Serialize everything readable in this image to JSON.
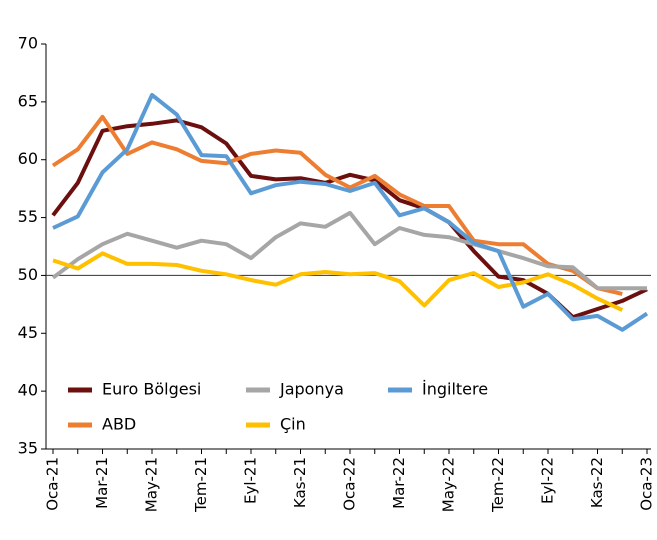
{
  "chart_data": {
    "type": "line",
    "categories": [
      "Oca-21",
      null,
      "Mar-21",
      null,
      "May-21",
      null,
      "Tem-21",
      null,
      "Eyl-21",
      null,
      "Kas-21",
      null,
      "Oca-22",
      null,
      "Mar-22",
      null,
      "May-22",
      null,
      "Tem-22",
      null,
      "Eyl-22",
      null,
      "Kas-22",
      null,
      "Oca-23"
    ],
    "series": [
      {
        "name": "Euro Bölgesi",
        "color": "#6b0f0f",
        "values": [
          55.2,
          58.0,
          62.5,
          62.9,
          63.1,
          63.4,
          62.8,
          61.4,
          58.6,
          58.3,
          58.4,
          58.0,
          58.7,
          58.2,
          56.5,
          55.8,
          54.6,
          52.1,
          49.9,
          49.6,
          48.4,
          46.4,
          47.1,
          47.8,
          48.8
        ]
      },
      {
        "name": "ABD",
        "color": "#ed7d31",
        "values": [
          59.5,
          60.9,
          63.7,
          60.5,
          61.5,
          60.9,
          59.9,
          59.7,
          60.5,
          60.8,
          60.6,
          58.7,
          57.6,
          58.6,
          57.0,
          56.0,
          56.0,
          53.0,
          52.7,
          52.7,
          51.0,
          50.4,
          48.9,
          48.4,
          null
        ]
      },
      {
        "name": "Japonya",
        "color": "#a6a6a6",
        "values": [
          49.8,
          51.4,
          52.7,
          53.6,
          53.0,
          52.4,
          53.0,
          52.7,
          51.5,
          53.3,
          54.5,
          54.2,
          55.4,
          52.7,
          54.1,
          53.5,
          53.3,
          52.7,
          52.1,
          51.5,
          50.8,
          50.7,
          48.9,
          48.9,
          48.9
        ]
      },
      {
        "name": "Çin",
        "color": "#ffc000",
        "values": [
          51.3,
          50.6,
          51.9,
          51.0,
          51.0,
          50.9,
          50.4,
          50.1,
          49.6,
          49.2,
          50.1,
          50.3,
          50.1,
          50.2,
          49.5,
          47.4,
          49.6,
          50.2,
          49.0,
          49.4,
          50.1,
          49.2,
          48.0,
          47.0,
          null
        ]
      },
      {
        "name": "İngiltere",
        "color": "#5b9bd5",
        "values": [
          54.1,
          55.1,
          58.9,
          60.9,
          65.6,
          63.9,
          60.4,
          60.3,
          57.1,
          57.8,
          58.1,
          57.9,
          57.3,
          58.0,
          55.2,
          55.8,
          54.6,
          52.8,
          52.1,
          47.3,
          48.4,
          46.2,
          46.5,
          45.3,
          46.7
        ]
      }
    ],
    "ylim": [
      35,
      70
    ],
    "yticks": [
      35,
      40,
      45,
      50,
      55,
      60,
      65,
      70
    ],
    "reference_line": 50,
    "grid": false,
    "legend": "lower left"
  }
}
